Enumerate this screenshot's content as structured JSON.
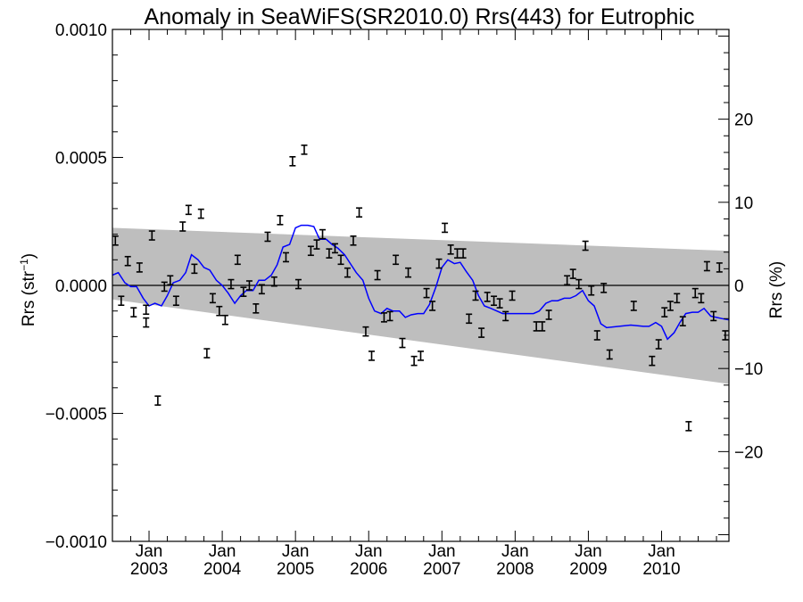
{
  "chart_data": {
    "type": "scatter",
    "title": "Anomaly in SeaWiFS(SR2010.0) Rrs(443) for Eutrophic",
    "ylabel_left": "Rrs (str",
    "ylabel_left_sup": "−1",
    "ylabel_left_close": ")",
    "ylabel_right": "Rrs (%)",
    "xlim": [
      2002.5,
      2010.92
    ],
    "ylim_left": [
      -0.001,
      0.001
    ],
    "ylim_right": [
      -30.8,
      30.8
    ],
    "x_tick_labels": [
      {
        "x": 2003.0,
        "top": "Jan",
        "bottom": "2003"
      },
      {
        "x": 2004.0,
        "top": "Jan",
        "bottom": "2004"
      },
      {
        "x": 2005.0,
        "top": "Jan",
        "bottom": "2005"
      },
      {
        "x": 2006.0,
        "top": "Jan",
        "bottom": "2006"
      },
      {
        "x": 2007.0,
        "top": "Jan",
        "bottom": "2007"
      },
      {
        "x": 2008.0,
        "top": "Jan",
        "bottom": "2008"
      },
      {
        "x": 2009.0,
        "top": "Jan",
        "bottom": "2009"
      },
      {
        "x": 2010.0,
        "top": "Jan",
        "bottom": "2010"
      }
    ],
    "y_left_ticks": [
      {
        "value": 0.001,
        "label": "0.0010"
      },
      {
        "value": 0.0005,
        "label": "0.0005"
      },
      {
        "value": 0.0,
        "label": "0.0000"
      },
      {
        "value": -0.0005,
        "label": "−0.0005"
      },
      {
        "value": -0.001,
        "label": "−0.0010"
      }
    ],
    "y_right_ticks": [
      {
        "value": 20,
        "label": "20"
      },
      {
        "value": 10,
        "label": "10"
      },
      {
        "value": 0,
        "label": "0"
      },
      {
        "value": -10,
        "label": "−10"
      },
      {
        "value": -20,
        "label": "−20"
      }
    ],
    "uncertainty_band": {
      "color": "#bebebe",
      "x": [
        2002.5,
        2010.92
      ],
      "upper": [
        0.000225,
        0.000135
      ],
      "lower": [
        -5.5e-05,
        -0.000385
      ]
    },
    "zero_line": 0.0,
    "series": [
      {
        "kind": "errorbar_points",
        "color": "#000000",
        "x": [
          2002.54,
          2002.62,
          2002.71,
          2002.79,
          2002.87,
          2002.96,
          2002.96,
          2003.04,
          2003.12,
          2003.21,
          2003.29,
          2003.37,
          2003.46,
          2003.54,
          2003.62,
          2003.71,
          2003.79,
          2003.87,
          2003.96,
          2004.04,
          2004.12,
          2004.21,
          2004.29,
          2004.37,
          2004.46,
          2004.54,
          2004.62,
          2004.71,
          2004.79,
          2004.87,
          2004.96,
          2005.04,
          2005.12,
          2005.21,
          2005.29,
          2005.37,
          2005.46,
          2005.54,
          2005.62,
          2005.71,
          2005.79,
          2005.87,
          2005.96,
          2006.04,
          2006.12,
          2006.21,
          2006.29,
          2006.37,
          2006.46,
          2006.54,
          2006.62,
          2006.71,
          2006.79,
          2006.87,
          2006.96,
          2007.04,
          2007.12,
          2007.21,
          2007.29,
          2007.37,
          2007.46,
          2007.54,
          2007.62,
          2007.71,
          2007.79,
          2007.87,
          2007.96,
          2008.29,
          2008.37,
          2008.46,
          2008.71,
          2008.79,
          2008.87,
          2008.96,
          2009.04,
          2009.12,
          2009.21,
          2009.29,
          2009.62,
          2009.87,
          2009.96,
          2010.04,
          2010.12,
          2010.21,
          2010.29,
          2010.37,
          2010.46,
          2010.54,
          2010.62,
          2010.71,
          2010.79,
          2010.87
        ],
        "y": [
          0.000175,
          -6e-05,
          9.5e-05,
          -0.000105,
          7e-05,
          -0.000145,
          -9.5e-05,
          0.000195,
          -0.00045,
          -5e-06,
          2e-05,
          -6e-05,
          0.00023,
          0.000295,
          6.5e-05,
          0.00028,
          -0.000265,
          -5e-05,
          -0.0001,
          -0.000135,
          5e-06,
          0.0001,
          -2.5e-05,
          0.0,
          -9e-05,
          -1.5e-05,
          0.00019,
          1.5e-05,
          0.000255,
          0.00011,
          0.000485,
          5e-06,
          0.00053,
          0.000135,
          0.00016,
          0.0002,
          0.000125,
          0.000145,
          0.0001,
          5e-05,
          0.000175,
          0.000285,
          -0.00018,
          -0.000275,
          4e-05,
          -0.000125,
          -0.00012,
          0.0001,
          -0.000225,
          5e-05,
          -0.000295,
          -0.000275,
          -3e-05,
          -8e-05,
          8.5e-05,
          0.000225,
          0.00014,
          0.000125,
          0.000125,
          -0.00013,
          -4e-05,
          -0.000185,
          -4.5e-05,
          -6e-05,
          -7e-05,
          -0.00012,
          -4e-05,
          -0.00016,
          -0.00016,
          -0.000115,
          2e-05,
          4.5e-05,
          5e-06,
          0.000155,
          -2e-05,
          -0.000195,
          -1e-05,
          -0.00027,
          -8e-05,
          -0.000295,
          -0.00023,
          -0.000105,
          -8e-05,
          -5e-05,
          -0.00014,
          -0.00055,
          -3e-05,
          -5e-05,
          7.5e-05,
          -0.00012,
          7e-05,
          -0.000195
        ]
      },
      {
        "kind": "line",
        "color": "#0000ff",
        "x": [
          2002.5,
          2002.58,
          2002.67,
          2002.75,
          2002.83,
          2002.92,
          2003.0,
          2003.08,
          2003.17,
          2003.25,
          2003.33,
          2003.42,
          2003.5,
          2003.58,
          2003.67,
          2003.75,
          2003.83,
          2003.92,
          2004.0,
          2004.08,
          2004.17,
          2004.25,
          2004.33,
          2004.42,
          2004.5,
          2004.58,
          2004.67,
          2004.75,
          2004.83,
          2004.92,
          2005.0,
          2005.08,
          2005.17,
          2005.25,
          2005.33,
          2005.42,
          2005.5,
          2005.58,
          2005.67,
          2005.75,
          2005.83,
          2005.92,
          2006.0,
          2006.08,
          2006.17,
          2006.25,
          2006.33,
          2006.42,
          2006.5,
          2006.58,
          2006.67,
          2006.75,
          2006.83,
          2006.92,
          2007.0,
          2007.08,
          2007.17,
          2007.25,
          2007.33,
          2007.42,
          2007.5,
          2007.58,
          2007.67,
          2007.75,
          2007.83,
          2007.92,
          2008.0,
          2008.08,
          2008.17,
          2008.25,
          2008.33,
          2008.42,
          2008.5,
          2008.58,
          2008.67,
          2008.75,
          2008.83,
          2008.92,
          2009.0,
          2009.08,
          2009.17,
          2009.25,
          2009.42,
          2009.58,
          2009.75,
          2009.83,
          2009.92,
          2010.0,
          2010.08,
          2010.17,
          2010.25,
          2010.33,
          2010.42,
          2010.5,
          2010.58,
          2010.67,
          2010.75,
          2010.83,
          2010.92
        ],
        "y": [
          4e-05,
          5e-05,
          1e-05,
          -5e-06,
          -5e-06,
          -5e-05,
          -8e-05,
          -7e-05,
          -8e-05,
          -4e-05,
          1e-05,
          2e-05,
          5e-05,
          0.00012,
          0.0001,
          7e-05,
          6e-05,
          2e-05,
          0.0,
          -3e-05,
          -7e-05,
          -4e-05,
          -2e-05,
          -2e-05,
          2e-05,
          2e-05,
          4e-05,
          8e-05,
          0.00015,
          0.00016,
          0.000225,
          0.000235,
          0.000235,
          0.00023,
          0.00018,
          0.00018,
          0.00016,
          0.000145,
          0.00012,
          8.5e-05,
          5e-05,
          2e-05,
          -5e-05,
          -0.0001,
          -0.00011,
          -9e-05,
          -0.0001,
          -0.0001,
          -0.000125,
          -0.000115,
          -0.00011,
          -0.00011,
          -7.5e-05,
          -5e-06,
          7e-05,
          0.0001,
          8.5e-05,
          9e-05,
          5.5e-05,
          2e-05,
          -4e-05,
          -8e-05,
          -9e-05,
          -0.0001,
          -0.00011,
          -0.00011,
          -0.00011,
          -0.00011,
          -0.00011,
          -0.00011,
          -0.0001,
          -7e-05,
          -6e-05,
          -6e-05,
          -5e-05,
          -5e-05,
          -4e-05,
          -2e-05,
          -6e-05,
          -8e-05,
          -0.00015,
          -0.000165,
          -0.00016,
          -0.000155,
          -0.00016,
          -0.00016,
          -0.000145,
          -0.00016,
          -0.00021,
          -0.000185,
          -0.000145,
          -0.00011,
          -0.000105,
          -0.000105,
          -9e-05,
          -0.00012,
          -0.000125,
          -0.00013,
          -0.000135
        ]
      }
    ]
  }
}
